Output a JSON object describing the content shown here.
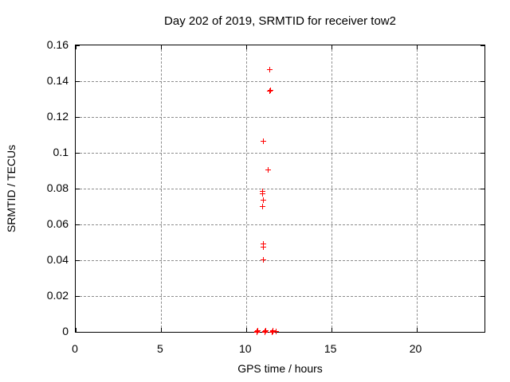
{
  "page": {
    "background": "#ffffff"
  },
  "chart_data": {
    "type": "scatter",
    "title": "Day 202 of 2019, SRMTID for receiver tow2",
    "xlabel": "GPS time / hours",
    "ylabel": "SRMTID / TECUs",
    "xlim": [
      0,
      24
    ],
    "ylim": [
      0,
      0.16
    ],
    "grid": true,
    "legend": "none",
    "marker": "plus",
    "marker_color": "#ff0000",
    "grid_color": "#8c8c8c",
    "axis_color": "#000000",
    "xticks": [
      {
        "value": 0,
        "label": "0"
      },
      {
        "value": 5,
        "label": "5"
      },
      {
        "value": 10,
        "label": "10"
      },
      {
        "value": 15,
        "label": "15"
      },
      {
        "value": 20,
        "label": "20"
      }
    ],
    "yticks": [
      {
        "value": 0,
        "label": "0"
      },
      {
        "value": 0.02,
        "label": "0.02"
      },
      {
        "value": 0.04,
        "label": "0.04"
      },
      {
        "value": 0.06,
        "label": "0.06"
      },
      {
        "value": 0.08,
        "label": "0.08"
      },
      {
        "value": 0.1,
        "label": "0.1"
      },
      {
        "value": 0.12,
        "label": "0.12"
      },
      {
        "value": 0.14,
        "label": "0.14"
      },
      {
        "value": 0.16,
        "label": "0.16"
      }
    ],
    "series": [
      {
        "name": "SRMTID",
        "points": [
          [
            11.4,
            0.1465
          ],
          [
            11.38,
            0.1344
          ],
          [
            11.43,
            0.1347
          ],
          [
            11.01,
            0.1065
          ],
          [
            11.29,
            0.0906
          ],
          [
            10.96,
            0.0786
          ],
          [
            10.96,
            0.077
          ],
          [
            11.0,
            0.0737
          ],
          [
            10.97,
            0.07
          ],
          [
            11.03,
            0.0491
          ],
          [
            11.03,
            0.0473
          ],
          [
            11.02,
            0.0401
          ],
          [
            10.63,
            0.0
          ],
          [
            10.66,
            0.0004
          ],
          [
            10.69,
            0.0008
          ],
          [
            11.1,
            0.0
          ],
          [
            11.13,
            0.0004
          ],
          [
            11.16,
            0.0008
          ],
          [
            11.53,
            0.0
          ],
          [
            11.56,
            0.0004
          ],
          [
            11.59,
            0.0008
          ],
          [
            11.77,
            0.0003
          ]
        ]
      }
    ]
  }
}
